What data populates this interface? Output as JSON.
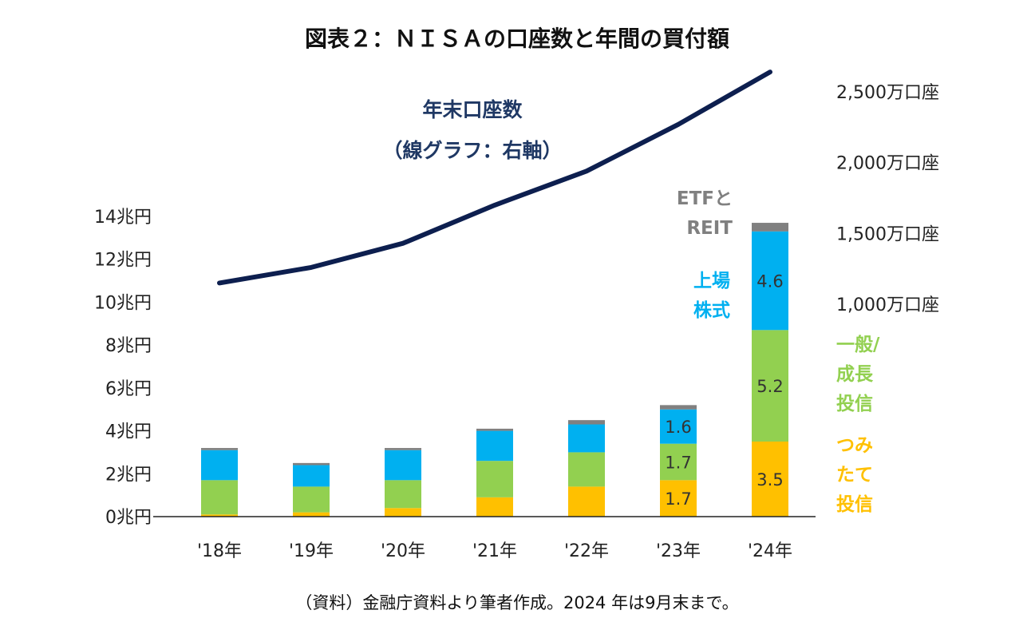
{
  "title": "図表２：ＮＩＳＡの口座数と年間の買付額",
  "source_note": "（資料）金融庁資料より筆者作成。2024 年は9月末まで。",
  "line_label": [
    "年末口座数",
    "（線グラフ：右軸）"
  ],
  "colors": {
    "tsumitate": "#ffc000",
    "general": "#92d050",
    "stocks": "#00b0f0",
    "etf": "#808080",
    "line": "#0d1f4f",
    "axis": "#222222"
  },
  "legend": {
    "etf": [
      "ETFと",
      "REIT"
    ],
    "stocks": [
      "上場",
      "株式"
    ],
    "general": [
      "一般/",
      "成長",
      "投信"
    ],
    "tsumitate": [
      "つみ",
      "たて",
      "投信"
    ]
  },
  "chart_data": {
    "type": "bar",
    "stacked": true,
    "categories": [
      "'18年",
      "'19年",
      "'20年",
      "'21年",
      "'22年",
      "'23年",
      "'24年"
    ],
    "series": [
      {
        "name": "つみたて投信",
        "color_key": "tsumitate",
        "values": [
          0.1,
          0.2,
          0.4,
          0.9,
          1.4,
          1.7,
          3.5
        ]
      },
      {
        "name": "一般/成長投信",
        "color_key": "general",
        "values": [
          1.6,
          1.2,
          1.3,
          1.7,
          1.6,
          1.7,
          5.2
        ]
      },
      {
        "name": "上場株式",
        "color_key": "stocks",
        "values": [
          1.4,
          1.0,
          1.4,
          1.4,
          1.3,
          1.6,
          4.6
        ]
      },
      {
        "name": "ETFとREIT",
        "color_key": "etf",
        "values": [
          0.1,
          0.1,
          0.1,
          0.1,
          0.2,
          0.2,
          0.4
        ]
      }
    ],
    "data_labels": [
      {
        "category_index": 5,
        "series_index": 0,
        "text": "1.7"
      },
      {
        "category_index": 5,
        "series_index": 1,
        "text": "1.7"
      },
      {
        "category_index": 5,
        "series_index": 2,
        "text": "1.6"
      },
      {
        "category_index": 6,
        "series_index": 0,
        "text": "3.5"
      },
      {
        "category_index": 6,
        "series_index": 1,
        "text": "5.2"
      },
      {
        "category_index": 6,
        "series_index": 2,
        "text": "4.6"
      }
    ],
    "y_left": {
      "min": 0,
      "max": 14,
      "step": 2,
      "ticks": [
        "0兆円",
        "2兆円",
        "4兆円",
        "6兆円",
        "8兆円",
        "10兆円",
        "12兆円",
        "14兆円"
      ]
    },
    "line": {
      "name": "年末口座数",
      "axis": "right",
      "values": [
        1150,
        1260,
        1430,
        1700,
        1940,
        2270,
        2640
      ]
    },
    "y_right": {
      "min": -500,
      "max": 2500,
      "ticks": [
        {
          "value": 1000,
          "label": "1,000万口座"
        },
        {
          "value": 1500,
          "label": "1,500万口座"
        },
        {
          "value": 2000,
          "label": "2,000万口座"
        },
        {
          "value": 2500,
          "label": "2,500万口座"
        }
      ]
    }
  }
}
